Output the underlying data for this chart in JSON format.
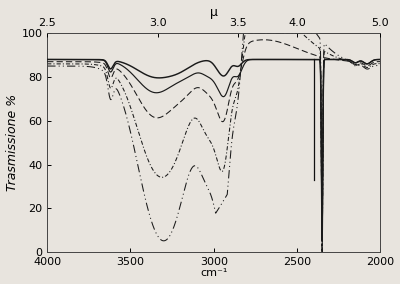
{
  "x_bottom_label": "cm⁻¹",
  "x_top_label": "μ",
  "y_label": "Trasmissione %",
  "x_bottom_min": 4000,
  "x_bottom_max": 2000,
  "y_min": 0,
  "y_max": 100,
  "background_color": "#e8e4de",
  "tick_label_fontsize": 8,
  "axis_label_fontsize": 9,
  "mu_ticks": [
    2.5,
    3.0,
    3.5,
    4.0,
    5.0
  ],
  "cm1_ticks": [
    4000,
    3500,
    3000,
    2500,
    2000
  ],
  "y_ticks": [
    0,
    20,
    40,
    60,
    80,
    100
  ]
}
